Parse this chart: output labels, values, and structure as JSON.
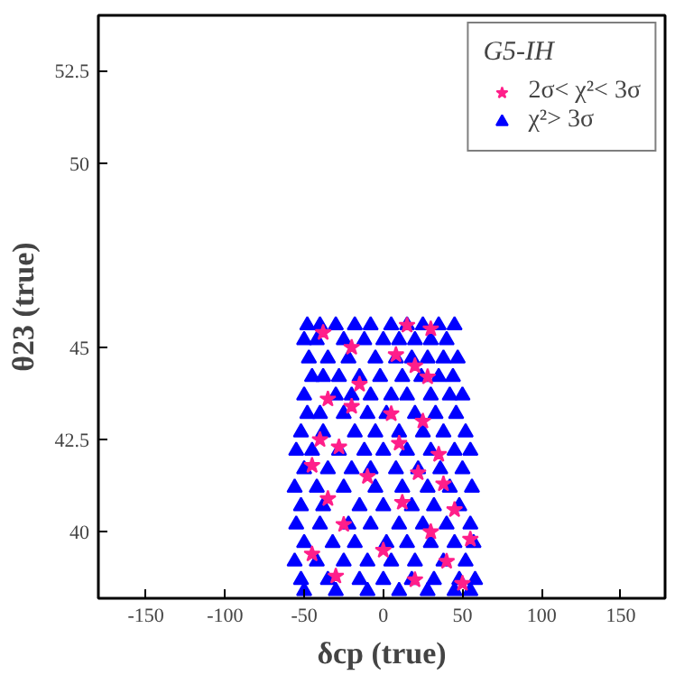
{
  "chart_data": {
    "type": "scatter",
    "xlabel": "δcp (true)",
    "ylabel": "θ23 (true)",
    "legend_title": "G5-IH",
    "legend": "top right",
    "grid": false,
    "xlim": [
      -180,
      178
    ],
    "ylim": [
      38.2,
      54
    ],
    "xticks": [
      -150,
      -100,
      -50,
      0,
      50,
      100,
      150
    ],
    "yticks": [
      40,
      42.5,
      45,
      50,
      52.5
    ],
    "series": [
      {
        "name": "χ²> 3σ",
        "color": "#0000ff",
        "marker": "triangle",
        "x": [
          -48,
          -40,
          -30,
          -18,
          -8,
          5,
          15,
          25,
          35,
          45,
          -50,
          -42,
          -25,
          -12,
          0,
          10,
          20,
          30,
          40,
          -47,
          -35,
          -22,
          -5,
          8,
          18,
          28,
          38,
          47,
          -45,
          -38,
          -28,
          -15,
          -2,
          12,
          24,
          35,
          44,
          -50,
          -30,
          -20,
          -8,
          5,
          15,
          30,
          42,
          50,
          -48,
          -40,
          -25,
          -10,
          2,
          20,
          33,
          46,
          -52,
          -38,
          -18,
          -5,
          10,
          25,
          38,
          52,
          -55,
          -45,
          -28,
          -12,
          0,
          15,
          30,
          45,
          55,
          -50,
          -35,
          -20,
          -8,
          8,
          22,
          36,
          50,
          -56,
          -42,
          -25,
          -5,
          12,
          28,
          42,
          56,
          -52,
          -38,
          -15,
          0,
          18,
          32,
          48,
          -55,
          -40,
          -22,
          -8,
          10,
          25,
          40,
          55,
          -50,
          -32,
          -18,
          2,
          15,
          30,
          45,
          57,
          -56,
          -42,
          -25,
          -10,
          5,
          20,
          38,
          52,
          -52,
          -35,
          -15,
          0,
          18,
          32,
          48,
          58,
          -50,
          -30,
          -10,
          10,
          28,
          45,
          55
        ],
        "values": [
          45.6,
          45.6,
          45.6,
          45.6,
          45.6,
          45.6,
          45.6,
          45.6,
          45.6,
          45.6,
          45.2,
          45.2,
          45.2,
          45.2,
          45.2,
          45.2,
          45.2,
          45.2,
          45.2,
          44.7,
          44.7,
          44.7,
          44.7,
          44.7,
          44.7,
          44.7,
          44.7,
          44.7,
          44.2,
          44.2,
          44.2,
          44.2,
          44.2,
          44.2,
          44.2,
          44.2,
          44.2,
          43.7,
          43.7,
          43.7,
          43.7,
          43.7,
          43.7,
          43.7,
          43.7,
          43.7,
          43.2,
          43.2,
          43.2,
          43.2,
          43.2,
          43.2,
          43.2,
          43.2,
          42.7,
          42.7,
          42.7,
          42.7,
          42.7,
          42.7,
          42.7,
          42.7,
          42.2,
          42.2,
          42.2,
          42.2,
          42.2,
          42.2,
          42.2,
          42.2,
          42.2,
          41.7,
          41.7,
          41.7,
          41.7,
          41.7,
          41.7,
          41.7,
          41.7,
          41.2,
          41.2,
          41.2,
          41.2,
          41.2,
          41.2,
          41.2,
          41.2,
          40.7,
          40.7,
          40.7,
          40.7,
          40.7,
          40.7,
          40.7,
          40.2,
          40.2,
          40.2,
          40.2,
          40.2,
          40.2,
          40.2,
          40.2,
          39.7,
          39.7,
          39.7,
          39.7,
          39.7,
          39.7,
          39.7,
          39.7,
          39.2,
          39.2,
          39.2,
          39.2,
          39.2,
          39.2,
          39.2,
          39.2,
          38.7,
          38.7,
          38.7,
          38.7,
          38.7,
          38.7,
          38.7,
          38.7,
          38.4,
          38.4,
          38.4,
          38.4,
          38.4,
          38.4,
          38.4
        ]
      },
      {
        "name": "2σ< χ²< 3σ",
        "color": "#ff1f8a",
        "marker": "star",
        "x": [
          -38,
          15,
          30,
          -20,
          8,
          20,
          -15,
          28,
          -35,
          -20,
          5,
          25,
          -40,
          -28,
          10,
          35,
          -45,
          -10,
          22,
          38,
          -35,
          12,
          45,
          -25,
          30,
          55,
          -45,
          0,
          40,
          -30,
          20,
          50
        ],
        "values": [
          45.4,
          45.6,
          45.5,
          45.0,
          44.8,
          44.5,
          44.0,
          44.2,
          43.6,
          43.4,
          43.2,
          43.0,
          42.5,
          42.3,
          42.4,
          42.1,
          41.8,
          41.5,
          41.6,
          41.3,
          40.9,
          40.8,
          40.6,
          40.2,
          40.0,
          39.8,
          39.4,
          39.5,
          39.2,
          38.8,
          38.7,
          38.6
        ]
      }
    ]
  }
}
